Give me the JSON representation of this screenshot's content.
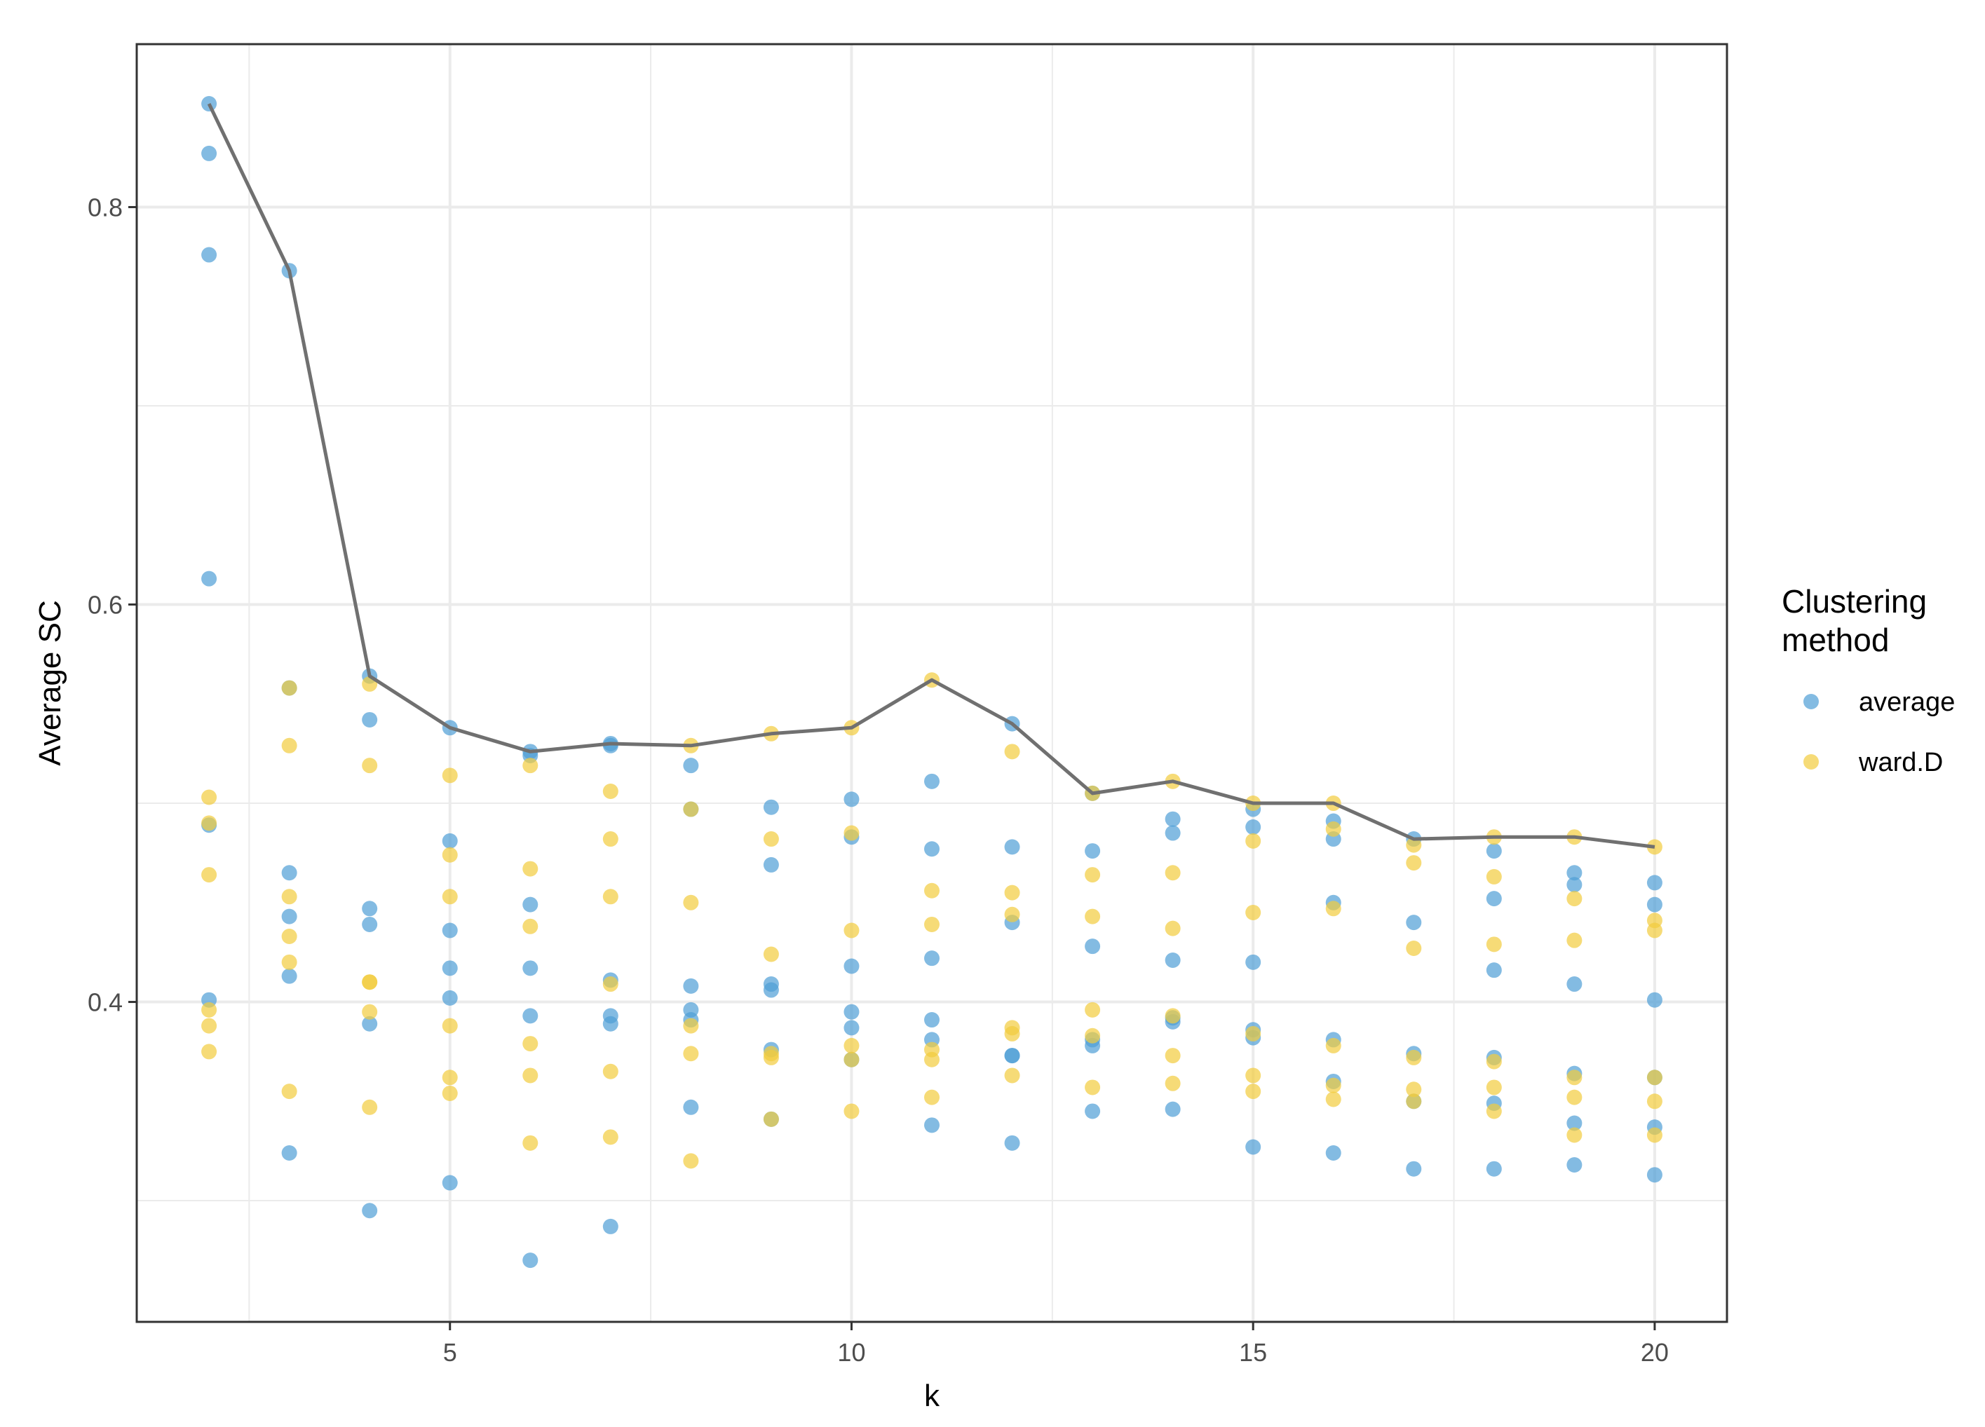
{
  "chart_data": {
    "type": "scatter",
    "xlabel": "k",
    "ylabel": "Average SC",
    "xlim": [
      1.1,
      20.9
    ],
    "ylim": [
      0.239,
      0.882
    ],
    "x_ticks": [
      5,
      10,
      15,
      20
    ],
    "y_ticks": [
      0.4,
      0.6,
      0.8
    ],
    "grid": true,
    "legend": {
      "title": "Clustering method",
      "title_lines": [
        "Clustering",
        "method"
      ],
      "placement": "right",
      "entries": [
        "average",
        "ward.D"
      ]
    },
    "colors": {
      "average": "#4f9ed6",
      "ward.D": "#f2cc3d",
      "line": "#707070",
      "panel_border": "#333333",
      "grid": "#ebebeb"
    },
    "series": [
      {
        "name": "average",
        "points": [
          [
            2,
            0.852
          ],
          [
            2,
            0.827
          ],
          [
            2,
            0.776
          ],
          [
            2,
            0.613
          ],
          [
            2,
            0.489
          ],
          [
            2,
            0.401
          ],
          [
            3,
            0.768
          ],
          [
            3,
            0.558
          ],
          [
            3,
            0.465
          ],
          [
            3,
            0.443
          ],
          [
            3,
            0.413
          ],
          [
            3,
            0.324
          ],
          [
            4,
            0.564
          ],
          [
            4,
            0.542
          ],
          [
            4,
            0.447
          ],
          [
            4,
            0.439
          ],
          [
            4,
            0.389
          ],
          [
            4,
            0.295
          ],
          [
            5,
            0.538
          ],
          [
            5,
            0.481
          ],
          [
            5,
            0.436
          ],
          [
            5,
            0.417
          ],
          [
            5,
            0.402
          ],
          [
            5,
            0.309
          ],
          [
            6,
            0.526
          ],
          [
            6,
            0.524
          ],
          [
            6,
            0.449
          ],
          [
            6,
            0.417
          ],
          [
            6,
            0.393
          ],
          [
            6,
            0.27
          ],
          [
            7,
            0.53
          ],
          [
            7,
            0.529
          ],
          [
            7,
            0.411
          ],
          [
            7,
            0.393
          ],
          [
            7,
            0.389
          ],
          [
            7,
            0.287
          ],
          [
            8,
            0.519
          ],
          [
            8,
            0.497
          ],
          [
            8,
            0.408
          ],
          [
            8,
            0.396
          ],
          [
            8,
            0.391
          ],
          [
            8,
            0.347
          ],
          [
            9,
            0.498
          ],
          [
            9,
            0.469
          ],
          [
            9,
            0.409
          ],
          [
            9,
            0.406
          ],
          [
            9,
            0.376
          ],
          [
            9,
            0.341
          ],
          [
            10,
            0.502
          ],
          [
            10,
            0.483
          ],
          [
            10,
            0.418
          ],
          [
            10,
            0.395
          ],
          [
            10,
            0.387
          ],
          [
            10,
            0.371
          ],
          [
            11,
            0.511
          ],
          [
            11,
            0.477
          ],
          [
            11,
            0.422
          ],
          [
            11,
            0.391
          ],
          [
            11,
            0.381
          ],
          [
            11,
            0.338
          ],
          [
            12,
            0.54
          ],
          [
            12,
            0.478
          ],
          [
            12,
            0.44
          ],
          [
            12,
            0.373
          ],
          [
            12,
            0.373
          ],
          [
            12,
            0.329
          ],
          [
            13,
            0.505
          ],
          [
            13,
            0.476
          ],
          [
            13,
            0.428
          ],
          [
            13,
            0.381
          ],
          [
            13,
            0.378
          ],
          [
            13,
            0.345
          ],
          [
            14,
            0.492
          ],
          [
            14,
            0.485
          ],
          [
            14,
            0.421
          ],
          [
            14,
            0.392
          ],
          [
            14,
            0.39
          ],
          [
            14,
            0.346
          ],
          [
            15,
            0.497
          ],
          [
            15,
            0.488
          ],
          [
            15,
            0.42
          ],
          [
            15,
            0.386
          ],
          [
            15,
            0.382
          ],
          [
            15,
            0.327
          ],
          [
            16,
            0.491
          ],
          [
            16,
            0.482
          ],
          [
            16,
            0.45
          ],
          [
            16,
            0.381
          ],
          [
            16,
            0.36
          ],
          [
            16,
            0.324
          ],
          [
            17,
            0.482
          ],
          [
            17,
            0.44
          ],
          [
            17,
            0.374
          ],
          [
            17,
            0.35
          ],
          [
            17,
            0.316
          ],
          [
            18,
            0.476
          ],
          [
            18,
            0.452
          ],
          [
            18,
            0.416
          ],
          [
            18,
            0.372
          ],
          [
            18,
            0.349
          ],
          [
            18,
            0.316
          ],
          [
            19,
            0.465
          ],
          [
            19,
            0.459
          ],
          [
            19,
            0.409
          ],
          [
            19,
            0.364
          ],
          [
            19,
            0.339
          ],
          [
            19,
            0.318
          ],
          [
            20,
            0.46
          ],
          [
            20,
            0.449
          ],
          [
            20,
            0.401
          ],
          [
            20,
            0.362
          ],
          [
            20,
            0.337
          ],
          [
            20,
            0.313
          ]
        ]
      },
      {
        "name": "ward.D",
        "points": [
          [
            2,
            0.503
          ],
          [
            2,
            0.49
          ],
          [
            2,
            0.464
          ],
          [
            2,
            0.396
          ],
          [
            2,
            0.388
          ],
          [
            2,
            0.375
          ],
          [
            3,
            0.558
          ],
          [
            3,
            0.529
          ],
          [
            3,
            0.453
          ],
          [
            3,
            0.433
          ],
          [
            3,
            0.42
          ],
          [
            3,
            0.355
          ],
          [
            4,
            0.56
          ],
          [
            4,
            0.519
          ],
          [
            4,
            0.41
          ],
          [
            4,
            0.41
          ],
          [
            4,
            0.395
          ],
          [
            4,
            0.347
          ],
          [
            5,
            0.514
          ],
          [
            5,
            0.474
          ],
          [
            5,
            0.453
          ],
          [
            5,
            0.388
          ],
          [
            5,
            0.362
          ],
          [
            5,
            0.354
          ],
          [
            6,
            0.519
          ],
          [
            6,
            0.467
          ],
          [
            6,
            0.438
          ],
          [
            6,
            0.379
          ],
          [
            6,
            0.363
          ],
          [
            6,
            0.329
          ],
          [
            7,
            0.506
          ],
          [
            7,
            0.482
          ],
          [
            7,
            0.453
          ],
          [
            7,
            0.409
          ],
          [
            7,
            0.365
          ],
          [
            7,
            0.332
          ],
          [
            8,
            0.529
          ],
          [
            8,
            0.497
          ],
          [
            8,
            0.45
          ],
          [
            8,
            0.388
          ],
          [
            8,
            0.374
          ],
          [
            8,
            0.32
          ],
          [
            9,
            0.535
          ],
          [
            9,
            0.482
          ],
          [
            9,
            0.424
          ],
          [
            9,
            0.374
          ],
          [
            9,
            0.372
          ],
          [
            9,
            0.341
          ],
          [
            10,
            0.538
          ],
          [
            10,
            0.485
          ],
          [
            10,
            0.436
          ],
          [
            10,
            0.378
          ],
          [
            10,
            0.371
          ],
          [
            10,
            0.345
          ],
          [
            11,
            0.562
          ],
          [
            11,
            0.456
          ],
          [
            11,
            0.439
          ],
          [
            11,
            0.376
          ],
          [
            11,
            0.371
          ],
          [
            11,
            0.352
          ],
          [
            12,
            0.526
          ],
          [
            12,
            0.455
          ],
          [
            12,
            0.444
          ],
          [
            12,
            0.387
          ],
          [
            12,
            0.384
          ],
          [
            12,
            0.363
          ],
          [
            13,
            0.505
          ],
          [
            13,
            0.464
          ],
          [
            13,
            0.443
          ],
          [
            13,
            0.396
          ],
          [
            13,
            0.383
          ],
          [
            13,
            0.357
          ],
          [
            14,
            0.511
          ],
          [
            14,
            0.465
          ],
          [
            14,
            0.437
          ],
          [
            14,
            0.393
          ],
          [
            14,
            0.373
          ],
          [
            14,
            0.359
          ],
          [
            15,
            0.5
          ],
          [
            15,
            0.481
          ],
          [
            15,
            0.445
          ],
          [
            15,
            0.384
          ],
          [
            15,
            0.363
          ],
          [
            15,
            0.355
          ],
          [
            16,
            0.5
          ],
          [
            16,
            0.487
          ],
          [
            16,
            0.447
          ],
          [
            16,
            0.378
          ],
          [
            16,
            0.358
          ],
          [
            16,
            0.351
          ],
          [
            17,
            0.479
          ],
          [
            17,
            0.47
          ],
          [
            17,
            0.427
          ],
          [
            17,
            0.372
          ],
          [
            17,
            0.356
          ],
          [
            17,
            0.35
          ],
          [
            18,
            0.483
          ],
          [
            18,
            0.463
          ],
          [
            18,
            0.429
          ],
          [
            18,
            0.37
          ],
          [
            18,
            0.357
          ],
          [
            18,
            0.345
          ],
          [
            19,
            0.483
          ],
          [
            19,
            0.452
          ],
          [
            19,
            0.431
          ],
          [
            19,
            0.362
          ],
          [
            19,
            0.352
          ],
          [
            19,
            0.333
          ],
          [
            20,
            0.478
          ],
          [
            20,
            0.441
          ],
          [
            20,
            0.436
          ],
          [
            20,
            0.362
          ],
          [
            20,
            0.35
          ],
          [
            20,
            0.333
          ]
        ]
      }
    ],
    "max_line": {
      "x": [
        2,
        3,
        4,
        5,
        6,
        7,
        8,
        9,
        10,
        11,
        12,
        13,
        14,
        15,
        16,
        17,
        18,
        19,
        20
      ],
      "y": [
        0.852,
        0.768,
        0.564,
        0.538,
        0.526,
        0.53,
        0.529,
        0.535,
        0.538,
        0.562,
        0.54,
        0.505,
        0.511,
        0.5,
        0.5,
        0.482,
        0.483,
        0.483,
        0.478
      ]
    }
  }
}
